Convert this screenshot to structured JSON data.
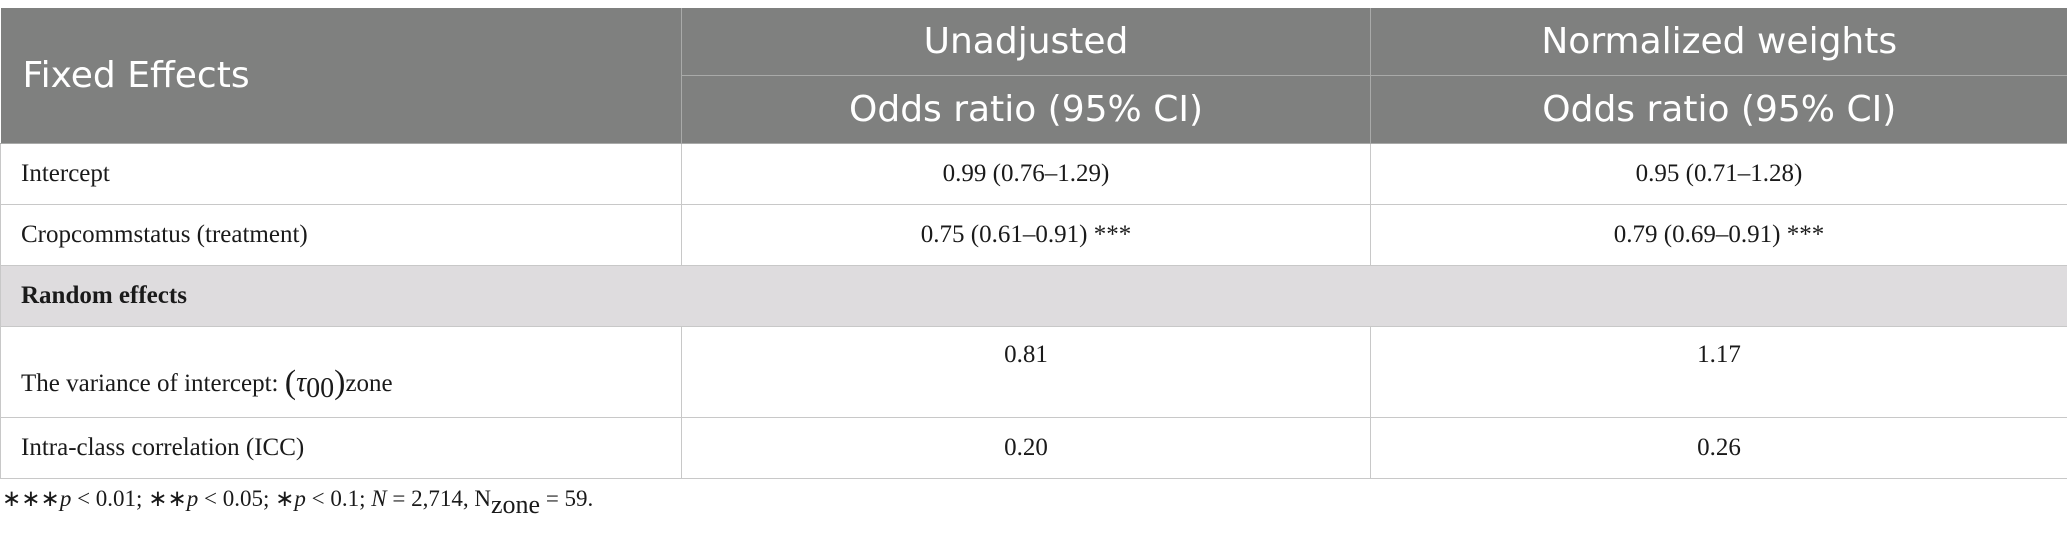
{
  "header": {
    "col1": "Fixed Effects",
    "col2_group": "Unadjusted",
    "col3_group": "Normalized weights",
    "col2_sub": "Odds ratio (95% CI)",
    "col3_sub": "Odds ratio (95% CI)"
  },
  "rows": {
    "intercept": {
      "label": "Intercept",
      "unadjusted": "0.99 (0.76–1.29)",
      "normalized": "0.95 (0.71–1.28)"
    },
    "crop": {
      "label": "Cropcommstatus (treatment)",
      "unadjusted": "0.75 (0.61–0.91) ***",
      "normalized": "0.79 (0.69–0.91) ***"
    },
    "random_section": "Random effects",
    "variance": {
      "label_prefix": "The variance of intercept: ",
      "open_paren": "(",
      "tau": "τ",
      "tau_sub": "00",
      "close_paren": ")",
      "label_suffix": "zone",
      "unadjusted": "0.81",
      "normalized": "1.17"
    },
    "icc": {
      "label": "Intra-class correlation (ICC)",
      "unadjusted": "0.20",
      "normalized": "0.26"
    }
  },
  "footnote": {
    "p1_stars": "∗∗∗",
    "p1_var": "p",
    "p1_text": " < 0.01; ",
    "p2_stars": "∗∗",
    "p2_var": "p",
    "p2_text": " < 0.05; ",
    "p3_stars": "∗",
    "p3_var": "p",
    "p3_text": " < 0.1; ",
    "n_var": "N",
    "n_text": " = 2,714, ",
    "nzone_main": "N",
    "nzone_sub": "zone",
    "nzone_text": " = 59."
  }
}
